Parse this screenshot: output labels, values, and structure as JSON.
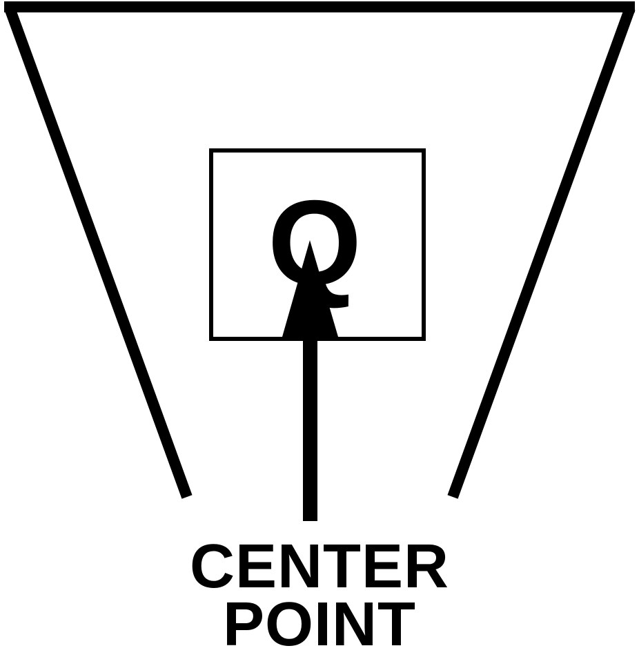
{
  "symbol": {
    "letter": "Q"
  },
  "caption": {
    "line1": "CENTER",
    "line2": "POINT"
  },
  "colors": {
    "stroke": "#000000",
    "background": "#ffffff"
  },
  "icons": {
    "pointer": "up-arrow-icon"
  }
}
